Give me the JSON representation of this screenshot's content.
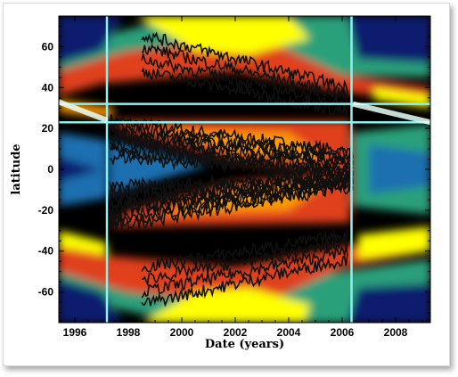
{
  "chart_data": {
    "type": "heatmap",
    "xlabel": "Date (years)",
    "ylabel": "latitude",
    "xlim": [
      1995.4,
      2009.3
    ],
    "ylim": [
      -75,
      75
    ],
    "x_ticks": [
      1996,
      1998,
      2000,
      2002,
      2004,
      2006,
      2008
    ],
    "x_tick_labels": [
      "1996",
      "1998",
      "2000",
      "2002",
      "2004",
      "2006",
      "2008"
    ],
    "y_ticks": [
      60,
      40,
      20,
      0,
      -20,
      -40,
      -60
    ],
    "y_tick_labels": [
      "60",
      "40",
      "20",
      "0",
      "-20",
      "-40",
      "-60"
    ],
    "vertical_lines_year": [
      1997.2,
      2006.35
    ],
    "horizontal_lines_latitude": [
      32,
      23
    ],
    "band_color_scale": [
      "#000000",
      "#0a1a6e",
      "#1e6fb0",
      "#2aa07a",
      "#e0401a",
      "#ff9a00",
      "#ffff00",
      "#ffffd0"
    ],
    "reference_line_color": "#8ff0f0"
  }
}
